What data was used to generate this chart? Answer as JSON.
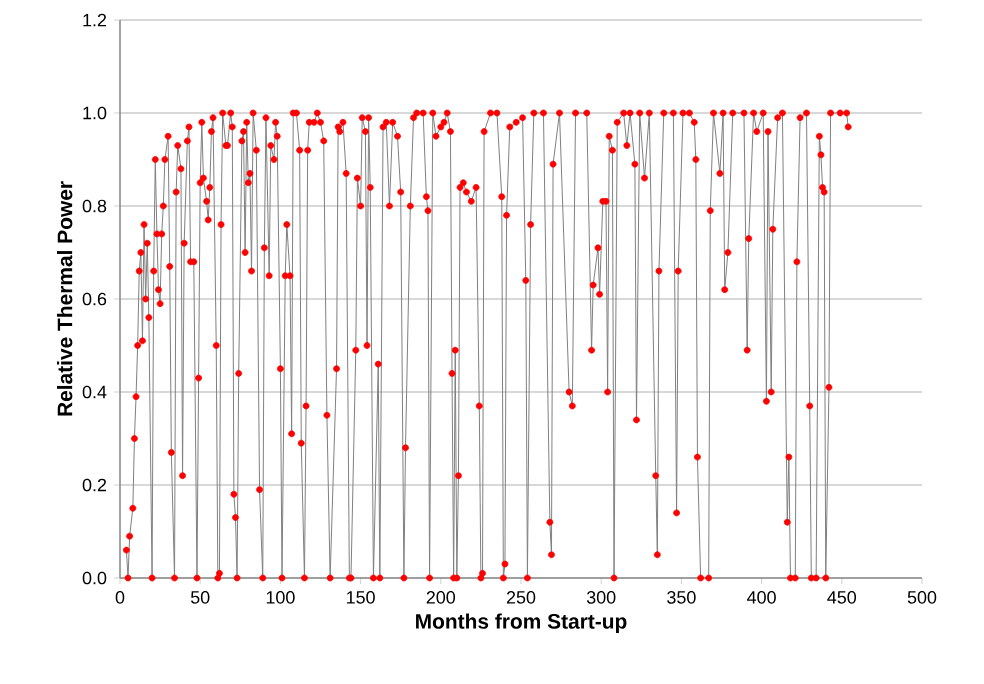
{
  "chart_data": {
    "type": "line",
    "xlabel": "Months from Start-up",
    "ylabel": "Relative Thermal Power",
    "xlim": [
      0,
      500
    ],
    "ylim": [
      0,
      1.2
    ],
    "xticks": [
      0,
      50,
      100,
      150,
      200,
      250,
      300,
      350,
      400,
      450,
      500
    ],
    "yticks": [
      {
        "value": 0,
        "label": "0.0"
      },
      {
        "value": 0.2,
        "label": "0.2"
      },
      {
        "value": 0.4,
        "label": "0.4"
      },
      {
        "value": 0.6,
        "label": "0.6"
      },
      {
        "value": 0.8,
        "label": "0.8"
      },
      {
        "value": 1.0,
        "label": "1.0"
      },
      {
        "value": 1.2,
        "label": "1.2"
      }
    ],
    "grid": "y",
    "legend": false,
    "series": [
      {
        "color": "#808080",
        "marker": "none",
        "line_style": "solid",
        "x": [
          4,
          5,
          6,
          8,
          9,
          10,
          11,
          12,
          13,
          14,
          15,
          16,
          17,
          18,
          20,
          21,
          22,
          23,
          24,
          25,
          26,
          27,
          28,
          30,
          31,
          32,
          34,
          35,
          36,
          38,
          39,
          40,
          42,
          43,
          44,
          46,
          48,
          49,
          50,
          51,
          52,
          54,
          55,
          56,
          57,
          58,
          60,
          61,
          62,
          63,
          64,
          66,
          67,
          69,
          70,
          71,
          72,
          73,
          74,
          76,
          77,
          78,
          79,
          80,
          81,
          82,
          83,
          85,
          87,
          89,
          90,
          91,
          93,
          94,
          96,
          97,
          98,
          100,
          101,
          103,
          104,
          106,
          107,
          108,
          110,
          112,
          113,
          115,
          116,
          117,
          118,
          121,
          123,
          125,
          127,
          129,
          131,
          135,
          136,
          137,
          139,
          141,
          143,
          144,
          147,
          148,
          150,
          151,
          153,
          154,
          155,
          156,
          158,
          161,
          162,
          164,
          166,
          168,
          170,
          173,
          175,
          177,
          178,
          181,
          183,
          185,
          189,
          191,
          192,
          193,
          195,
          197,
          200,
          202,
          204,
          206,
          207,
          208,
          209,
          210,
          211,
          212,
          214,
          216,
          219,
          222,
          224,
          225,
          226,
          227,
          231,
          235,
          238,
          239,
          240,
          241,
          243,
          247,
          251,
          253,
          254,
          256,
          258,
          264,
          268,
          269,
          270,
          274,
          280,
          282,
          284,
          291,
          294,
          295,
          298,
          299,
          301,
          303,
          304,
          305,
          307,
          308,
          310,
          314,
          316,
          318,
          321,
          322,
          324,
          327,
          330,
          334,
          335,
          336,
          339,
          345,
          347,
          348,
          351,
          355,
          358,
          359,
          360,
          362,
          367,
          368,
          370,
          374,
          376,
          377,
          379,
          382,
          389,
          391,
          392,
          395,
          397,
          401,
          403,
          404,
          406,
          407,
          410,
          413,
          416,
          417,
          418,
          421,
          422,
          424,
          428,
          430,
          431,
          434,
          436,
          437,
          438,
          439,
          440,
          442,
          443,
          449,
          453,
          454
        ],
        "values": [
          0.06,
          0.0,
          0.09,
          0.15,
          0.3,
          0.39,
          0.5,
          0.66,
          0.7,
          0.51,
          0.76,
          0.6,
          0.72,
          0.56,
          0.0,
          0.66,
          0.9,
          0.74,
          0.62,
          0.59,
          0.74,
          0.8,
          0.9,
          0.95,
          0.67,
          0.27,
          0.0,
          0.83,
          0.93,
          0.88,
          0.22,
          0.72,
          0.94,
          0.97,
          0.68,
          0.68,
          0.0,
          0.43,
          0.85,
          0.98,
          0.86,
          0.81,
          0.77,
          0.84,
          0.96,
          0.99,
          0.5,
          0.0,
          0.01,
          0.76,
          1.0,
          0.93,
          0.93,
          1.0,
          0.97,
          0.18,
          0.13,
          0.0,
          0.44,
          0.94,
          0.96,
          0.7,
          0.98,
          0.85,
          0.87,
          0.66,
          1.0,
          0.92,
          0.19,
          0.0,
          0.71,
          0.99,
          0.65,
          0.93,
          0.9,
          0.98,
          0.95,
          0.45,
          0.0,
          0.65,
          0.76,
          0.65,
          0.31,
          1.0,
          1.0,
          0.92,
          0.29,
          0.0,
          0.37,
          0.92,
          0.98,
          0.98,
          1.0,
          0.98,
          0.94,
          0.35,
          0.0,
          0.45,
          0.97,
          0.96,
          0.98,
          0.87,
          0.0,
          0.0,
          0.49,
          0.86,
          0.8,
          0.99,
          0.96,
          0.5,
          0.99,
          0.84,
          0.0,
          0.46,
          0.0,
          0.97,
          0.98,
          0.8,
          0.98,
          0.95,
          0.83,
          0.0,
          0.28,
          0.8,
          0.99,
          1.0,
          1.0,
          0.82,
          0.79,
          0.0,
          1.0,
          0.95,
          0.97,
          0.98,
          1.0,
          0.96,
          0.44,
          0.0,
          0.49,
          0.0,
          0.22,
          0.84,
          0.85,
          0.83,
          0.81,
          0.84,
          0.37,
          0.0,
          0.01,
          0.96,
          1.0,
          1.0,
          0.82,
          0.0,
          0.03,
          0.78,
          0.97,
          0.98,
          0.99,
          0.64,
          0.0,
          0.76,
          1.0,
          1.0,
          0.12,
          0.05,
          0.89,
          1.0,
          0.4,
          0.37,
          1.0,
          1.0,
          0.49,
          0.63,
          0.71,
          0.61,
          0.81,
          0.81,
          0.4,
          0.95,
          0.92,
          0.0,
          0.98,
          1.0,
          0.93,
          1.0,
          0.89,
          0.34,
          1.0,
          0.86,
          1.0,
          0.22,
          0.05,
          0.66,
          1.0,
          1.0,
          0.14,
          0.66,
          1.0,
          1.0,
          0.98,
          0.9,
          0.26,
          0.0,
          0.0,
          0.79,
          1.0,
          0.87,
          1.0,
          0.62,
          0.7,
          1.0,
          1.0,
          0.49,
          0.73,
          1.0,
          0.96,
          1.0,
          0.38,
          0.96,
          0.4,
          0.75,
          0.99,
          1.0,
          0.12,
          0.26,
          0.0,
          0.0,
          0.68,
          0.99,
          1.0,
          0.37,
          0.0,
          0.0,
          0.95,
          0.91,
          0.84,
          0.83,
          0.0,
          0.41,
          1.0,
          1.0,
          1.0,
          0.97
        ]
      },
      {
        "type": "scatter",
        "color": "#ff0000",
        "marker": "circle",
        "x": [
          4,
          5,
          6,
          8,
          9,
          10,
          11,
          12,
          13,
          14,
          15,
          16,
          17,
          18,
          20,
          21,
          22,
          23,
          24,
          25,
          26,
          27,
          28,
          30,
          31,
          32,
          34,
          35,
          36,
          38,
          39,
          40,
          42,
          43,
          44,
          46,
          48,
          49,
          50,
          51,
          52,
          54,
          55,
          56,
          57,
          58,
          60,
          61,
          62,
          63,
          64,
          66,
          67,
          69,
          70,
          71,
          72,
          73,
          74,
          76,
          77,
          78,
          79,
          80,
          81,
          82,
          83,
          85,
          87,
          89,
          90,
          91,
          93,
          94,
          96,
          97,
          98,
          100,
          101,
          103,
          104,
          106,
          107,
          108,
          110,
          112,
          113,
          115,
          116,
          117,
          118,
          121,
          123,
          125,
          127,
          129,
          131,
          135,
          136,
          137,
          139,
          141,
          143,
          144,
          147,
          148,
          150,
          151,
          153,
          154,
          155,
          156,
          158,
          161,
          162,
          164,
          166,
          168,
          170,
          173,
          175,
          177,
          178,
          181,
          183,
          185,
          189,
          191,
          192,
          193,
          195,
          197,
          200,
          202,
          204,
          206,
          207,
          208,
          209,
          210,
          211,
          212,
          214,
          216,
          219,
          222,
          224,
          225,
          226,
          227,
          231,
          235,
          238,
          239,
          240,
          241,
          243,
          247,
          251,
          253,
          254,
          256,
          258,
          264,
          268,
          269,
          270,
          274,
          280,
          282,
          284,
          291,
          294,
          295,
          298,
          299,
          301,
          303,
          304,
          305,
          307,
          308,
          310,
          314,
          316,
          318,
          321,
          322,
          324,
          327,
          330,
          334,
          335,
          336,
          339,
          345,
          347,
          348,
          351,
          355,
          358,
          359,
          360,
          362,
          367,
          368,
          370,
          374,
          376,
          377,
          379,
          382,
          389,
          391,
          392,
          395,
          397,
          401,
          403,
          404,
          406,
          407,
          410,
          413,
          416,
          417,
          418,
          421,
          422,
          424,
          428,
          430,
          431,
          434,
          436,
          437,
          438,
          439,
          440,
          442,
          443,
          449,
          453,
          454
        ],
        "values": [
          0.06,
          0.0,
          0.09,
          0.15,
          0.3,
          0.39,
          0.5,
          0.66,
          0.7,
          0.51,
          0.76,
          0.6,
          0.72,
          0.56,
          0.0,
          0.66,
          0.9,
          0.74,
          0.62,
          0.59,
          0.74,
          0.8,
          0.9,
          0.95,
          0.67,
          0.27,
          0.0,
          0.83,
          0.93,
          0.88,
          0.22,
          0.72,
          0.94,
          0.97,
          0.68,
          0.68,
          0.0,
          0.43,
          0.85,
          0.98,
          0.86,
          0.81,
          0.77,
          0.84,
          0.96,
          0.99,
          0.5,
          0.0,
          0.01,
          0.76,
          1.0,
          0.93,
          0.93,
          1.0,
          0.97,
          0.18,
          0.13,
          0.0,
          0.44,
          0.94,
          0.96,
          0.7,
          0.98,
          0.85,
          0.87,
          0.66,
          1.0,
          0.92,
          0.19,
          0.0,
          0.71,
          0.99,
          0.65,
          0.93,
          0.9,
          0.98,
          0.95,
          0.45,
          0.0,
          0.65,
          0.76,
          0.65,
          0.31,
          1.0,
          1.0,
          0.92,
          0.29,
          0.0,
          0.37,
          0.92,
          0.98,
          0.98,
          1.0,
          0.98,
          0.94,
          0.35,
          0.0,
          0.45,
          0.97,
          0.96,
          0.98,
          0.87,
          0.0,
          0.0,
          0.49,
          0.86,
          0.8,
          0.99,
          0.96,
          0.5,
          0.99,
          0.84,
          0.0,
          0.46,
          0.0,
          0.97,
          0.98,
          0.8,
          0.98,
          0.95,
          0.83,
          0.0,
          0.28,
          0.8,
          0.99,
          1.0,
          1.0,
          0.82,
          0.79,
          0.0,
          1.0,
          0.95,
          0.97,
          0.98,
          1.0,
          0.96,
          0.44,
          0.0,
          0.49,
          0.0,
          0.22,
          0.84,
          0.85,
          0.83,
          0.81,
          0.84,
          0.37,
          0.0,
          0.01,
          0.96,
          1.0,
          1.0,
          0.82,
          0.0,
          0.03,
          0.78,
          0.97,
          0.98,
          0.99,
          0.64,
          0.0,
          0.76,
          1.0,
          1.0,
          0.12,
          0.05,
          0.89,
          1.0,
          0.4,
          0.37,
          1.0,
          1.0,
          0.49,
          0.63,
          0.71,
          0.61,
          0.81,
          0.81,
          0.4,
          0.95,
          0.92,
          0.0,
          0.98,
          1.0,
          0.93,
          1.0,
          0.89,
          0.34,
          1.0,
          0.86,
          1.0,
          0.22,
          0.05,
          0.66,
          1.0,
          1.0,
          0.14,
          0.66,
          1.0,
          1.0,
          0.98,
          0.9,
          0.26,
          0.0,
          0.0,
          0.79,
          1.0,
          0.87,
          1.0,
          0.62,
          0.7,
          1.0,
          1.0,
          0.49,
          0.73,
          1.0,
          0.96,
          1.0,
          0.38,
          0.96,
          0.4,
          0.75,
          0.99,
          1.0,
          0.12,
          0.26,
          0.0,
          0.0,
          0.68,
          0.99,
          1.0,
          0.37,
          0.0,
          0.0,
          0.95,
          0.91,
          0.84,
          0.83,
          0.0,
          0.41,
          1.0,
          1.0,
          1.0,
          0.97
        ]
      }
    ]
  }
}
